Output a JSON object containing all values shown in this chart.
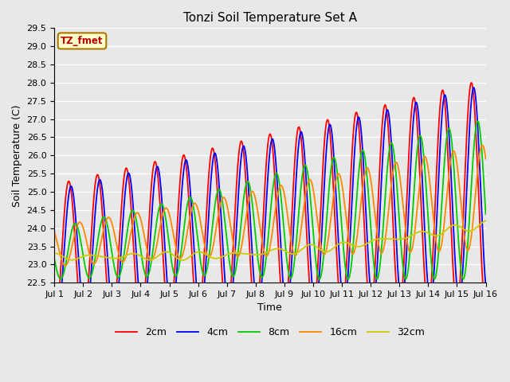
{
  "title": "Tonzi Soil Temperature Set A",
  "xlabel": "Time",
  "ylabel": "Soil Temperature (C)",
  "ylim": [
    22.5,
    29.5
  ],
  "annotation": "TZ_fmet",
  "legend_labels": [
    "2cm",
    "4cm",
    "8cm",
    "16cm",
    "32cm"
  ],
  "colors": {
    "2cm": "#ff0000",
    "4cm": "#0000ff",
    "8cm": "#00cc00",
    "16cm": "#ff8800",
    "32cm": "#cccc00"
  },
  "linewidth": 1.3,
  "n_days": 15,
  "n_points": 2000,
  "x_tick_labels": [
    "Jul 1",
    "Jul 2",
    "Jul 3",
    "Jul 4",
    "Jul 5",
    "Jul 6",
    "Jul 7",
    "Jul 8",
    "Jul 9",
    "Jul 10",
    "Jul 11",
    "Jul 12",
    "Jul 13",
    "Jul 14",
    "Jul 15",
    "Jul 16"
  ],
  "x_tick_positions": [
    0,
    1,
    2,
    3,
    4,
    5,
    6,
    7,
    8,
    9,
    10,
    11,
    12,
    13,
    14,
    15
  ],
  "yticks": [
    22.5,
    23.0,
    23.5,
    24.0,
    24.5,
    25.0,
    25.5,
    26.0,
    26.5,
    27.0,
    27.5,
    28.0,
    28.5,
    29.0,
    29.5
  ],
  "fig_bg": "#e8e8e8",
  "plot_bg": "#e8e8e8"
}
